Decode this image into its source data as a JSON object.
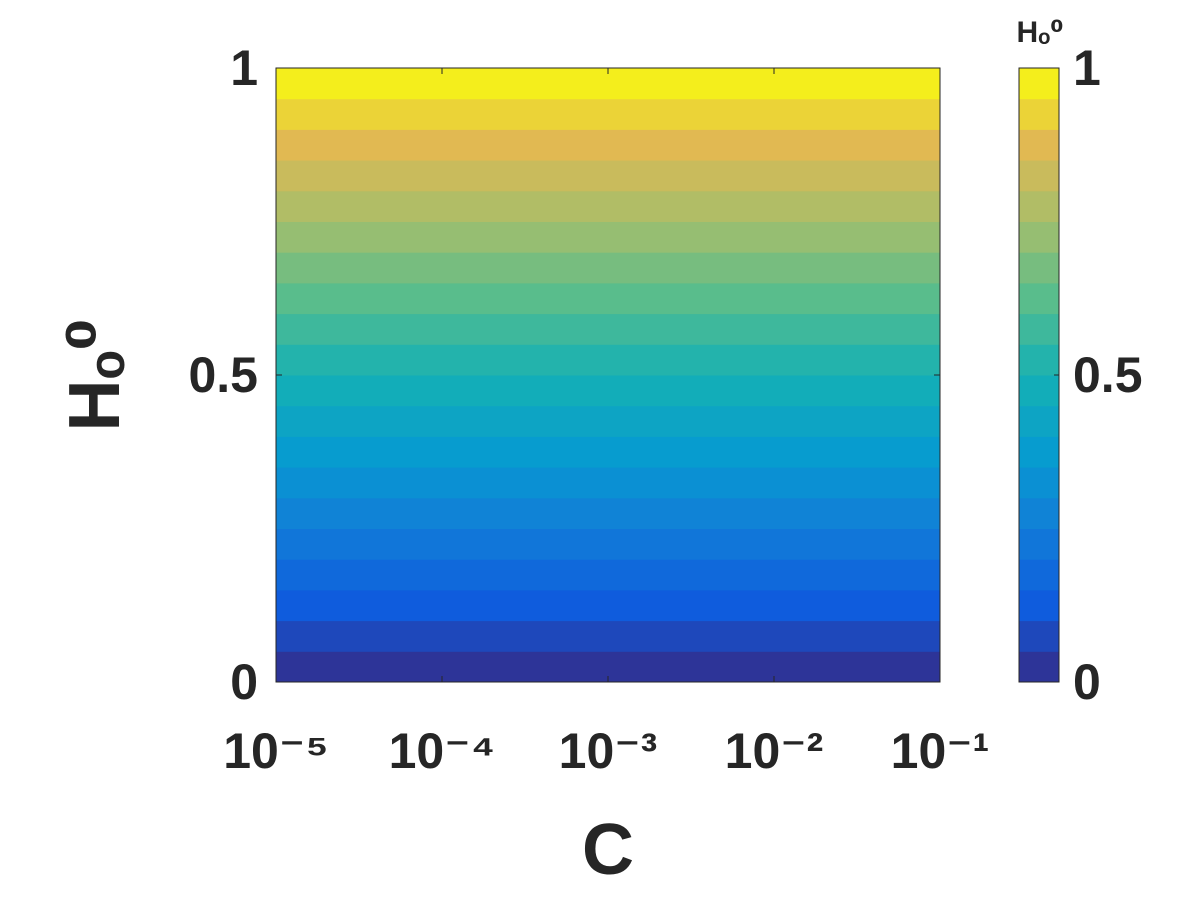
{
  "chart_data": {
    "type": "heatmap",
    "xlabel": "C",
    "ylabel": "Hₒ⁰",
    "colorbar_label": "Hₒ⁰",
    "xscale": "log",
    "xlim": [
      1e-05,
      0.1
    ],
    "xticks": [
      {
        "value": 1e-05,
        "label": "10⁻⁵"
      },
      {
        "value": 0.0001,
        "label": "10⁻⁴"
      },
      {
        "value": 0.001,
        "label": "10⁻³"
      },
      {
        "value": 0.01,
        "label": "10⁻²"
      },
      {
        "value": 0.1,
        "label": "10⁻¹"
      }
    ],
    "ylim": [
      0,
      1
    ],
    "yticks": [
      0,
      0.5,
      1
    ],
    "colormap": "parula",
    "clim": [
      0,
      1
    ],
    "cticks": [
      0,
      0.5,
      1
    ],
    "y_bins": [
      0,
      0.05,
      0.1,
      0.15,
      0.2,
      0.25,
      0.3,
      0.35,
      0.4,
      0.45,
      0.5,
      0.55,
      0.6,
      0.65,
      0.7,
      0.75,
      0.8,
      0.85,
      0.9,
      0.95,
      1
    ],
    "values": [
      0.025,
      0.075,
      0.125,
      0.175,
      0.225,
      0.275,
      0.325,
      0.375,
      0.425,
      0.475,
      0.525,
      0.575,
      0.625,
      0.675,
      0.725,
      0.775,
      0.825,
      0.875,
      0.925,
      0.975
    ]
  }
}
